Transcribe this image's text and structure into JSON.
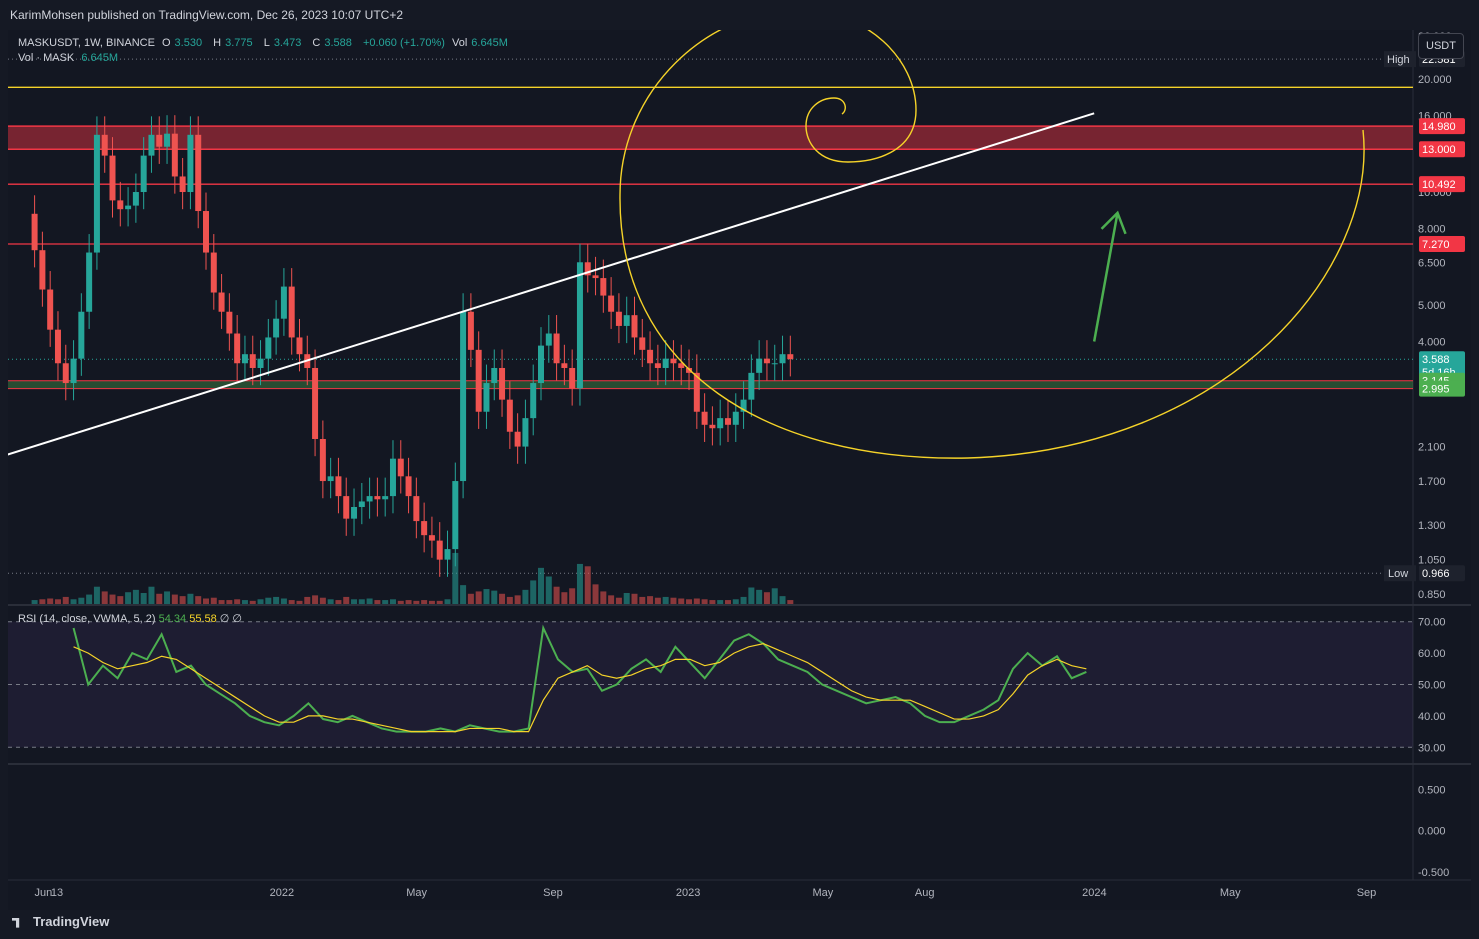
{
  "header": {
    "publisher": "KarimMohsen published on TradingView.com, Dec 26, 2023 10:07 UTC+2"
  },
  "legend": {
    "symbol": "MASKUSDT, 1W, BINANCE",
    "open_label": "O",
    "open": "3.530",
    "high_label": "H",
    "high": "3.775",
    "low_label": "L",
    "low": "3.473",
    "close_label": "C",
    "close": "3.588",
    "change": "+0.060 (+1.70%)",
    "vol_label": "Vol",
    "vol": "6.645M",
    "vol_series": "Vol · MASK",
    "vol_series_value": "6.645M"
  },
  "currency_button": "USDT",
  "rsi_legend": {
    "label": "RSI (14, close, VWMA, 5, 2)",
    "rsi": "54.34",
    "ma": "55.58",
    "extra": "∅ ∅"
  },
  "footer": {
    "brand": "TradingView"
  },
  "colors": {
    "bg": "#131722",
    "up": "#26a69a",
    "down": "#ef5350",
    "trend": "#ffffff",
    "spiral": "#f5d329",
    "zone_red": "#f23645",
    "zone_green": "#4caf50",
    "rsi": "#4caf50",
    "rsi_ma": "#f5d329",
    "arrow": "#4caf50"
  },
  "chart_data": [
    {
      "type": "candlestick",
      "title": "MASKUSDT, 1W, BINANCE",
      "y_scale": "log",
      "ylim": [
        0.8,
        27
      ],
      "y_ticks": [
        "26.000",
        "20.000",
        "16.000",
        "10.000",
        "8.000",
        "6.500",
        "5.000",
        "4.000",
        "2.100",
        "1.700",
        "1.300",
        "1.050",
        "0.850"
      ],
      "x_ticks": [
        "Jun",
        "13",
        "2022",
        "May",
        "Sep",
        "2023",
        "May",
        "Aug",
        "2024",
        "May",
        "Sep"
      ],
      "high_marker": {
        "label": "High",
        "value": "22.581"
      },
      "low_marker": {
        "label": "Low",
        "value": "0.966"
      },
      "price_labels": [
        {
          "value": "14.980",
          "kind": "zone"
        },
        {
          "value": "13.000",
          "kind": "zone"
        },
        {
          "value": "10.492",
          "kind": "level"
        },
        {
          "value": "7.270",
          "kind": "level"
        },
        {
          "value": "3.588",
          "kind": "last",
          "sub": "5d 16h"
        },
        {
          "value": "3.145",
          "kind": "support"
        },
        {
          "value": "2.995",
          "kind": "support"
        }
      ],
      "horizontal_levels": [
        19.0,
        10.492,
        7.27
      ],
      "resistance_zone": [
        13.0,
        14.98
      ],
      "support_zone": [
        2.995,
        3.145
      ],
      "trendline": [
        {
          "date": "2021-01-01",
          "price": 1.55
        },
        {
          "date": "2024-01-01",
          "price": 16.2
        }
      ],
      "forecast_arrow": [
        {
          "date": "2024-01-01",
          "price": 4.0
        },
        {
          "date": "2024-01-22",
          "price": 8.8
        }
      ],
      "closes": [
        7.0,
        5.5,
        4.3,
        3.5,
        3.1,
        3.6,
        4.8,
        6.9,
        14.2,
        12.5,
        9.5,
        9.0,
        9.2,
        10.0,
        12.5,
        14.2,
        13.2,
        14.3,
        11.0,
        10.0,
        14.2,
        8.9,
        6.9,
        5.4,
        4.8,
        4.2,
        3.5,
        3.7,
        3.4,
        3.6,
        4.1,
        4.6,
        5.6,
        4.1,
        3.7,
        3.4,
        2.2,
        1.7,
        1.75,
        1.55,
        1.35,
        1.45,
        1.5,
        1.55,
        1.52,
        1.55,
        1.95,
        1.75,
        1.55,
        1.33,
        1.22,
        1.18,
        1.05,
        1.12,
        1.7,
        4.8,
        3.8,
        2.6,
        3.1,
        3.4,
        2.8,
        2.3,
        2.1,
        2.5,
        3.1,
        3.9,
        4.2,
        3.5,
        3.4,
        3.0,
        6.5,
        6.0,
        5.9,
        5.3,
        4.8,
        4.4,
        4.7,
        4.1,
        3.8,
        3.5,
        3.4,
        3.6,
        3.5,
        3.4,
        3.3,
        2.6,
        2.4,
        2.35,
        2.5,
        2.4,
        2.6,
        2.8,
        3.3,
        3.6,
        3.5,
        3.5,
        3.7,
        3.588
      ],
      "volumes": [
        0.5,
        0.6,
        0.7,
        0.6,
        0.9,
        0.6,
        0.8,
        1.2,
        2.2,
        1.6,
        1.2,
        1.0,
        1.5,
        1.8,
        1.4,
        2.2,
        1.3,
        1.6,
        1.2,
        1.0,
        1.3,
        1.0,
        0.7,
        0.8,
        0.5,
        0.5,
        0.6,
        0.5,
        0.4,
        0.6,
        0.8,
        0.9,
        0.7,
        0.5,
        0.4,
        0.9,
        1.1,
        0.8,
        0.6,
        0.5,
        0.9,
        0.6,
        0.6,
        0.7,
        0.5,
        0.5,
        0.6,
        0.4,
        0.5,
        0.4,
        0.5,
        0.4,
        0.4,
        0.6,
        6.5,
        2.4,
        1.3,
        1.6,
        1.9,
        1.7,
        1.3,
        0.9,
        1.1,
        1.8,
        3.0,
        4.6,
        3.5,
        2.2,
        1.5,
        2.0,
        5.1,
        4.8,
        2.5,
        1.6,
        1.1,
        0.8,
        1.4,
        1.3,
        0.9,
        1.0,
        0.8,
        0.9,
        0.8,
        0.7,
        0.6,
        0.7,
        0.6,
        0.5,
        0.5,
        0.5,
        0.6,
        0.9,
        2.1,
        1.8,
        1.5,
        2.0,
        1.0,
        0.5
      ]
    },
    {
      "type": "line",
      "title": "RSI (14, close, VWMA, 5, 2)",
      "ylim": [
        25,
        75
      ],
      "y_ticks": [
        "70.00",
        "60.00",
        "50.00",
        "40.00",
        "30.00"
      ],
      "band": [
        30,
        70
      ],
      "series": [
        {
          "name": "RSI",
          "values": [
            68,
            50,
            56,
            52,
            60,
            58,
            66,
            54,
            56,
            50,
            47,
            44,
            40,
            38,
            37,
            40,
            44,
            39,
            38,
            40,
            38,
            36,
            35,
            35,
            35,
            36,
            35,
            37,
            36,
            35,
            35,
            36,
            68,
            58,
            54,
            55,
            48,
            50,
            55,
            58,
            54,
            62,
            57,
            52,
            58,
            64,
            66,
            63,
            58,
            56,
            54,
            50,
            48,
            46,
            44,
            45,
            46,
            44,
            40,
            38,
            38,
            40,
            42,
            45,
            55,
            60,
            56,
            59,
            52,
            54
          ]
        },
        {
          "name": "MA",
          "values": [
            62,
            60,
            57,
            55,
            56,
            57,
            59,
            58,
            55,
            52,
            49,
            46,
            43,
            40,
            38,
            38,
            40,
            40,
            39,
            39,
            38,
            37,
            36,
            35,
            35,
            35,
            35,
            36,
            36,
            36,
            35,
            35,
            45,
            52,
            54,
            56,
            53,
            52,
            53,
            55,
            56,
            58,
            58,
            56,
            57,
            60,
            62,
            63,
            61,
            59,
            57,
            54,
            51,
            48,
            46,
            45,
            45,
            45,
            43,
            41,
            39,
            39,
            40,
            42,
            47,
            53,
            56,
            58,
            56,
            55
          ]
        }
      ]
    },
    {
      "type": "line",
      "title": "",
      "ylim": [
        -0.6,
        0.8
      ],
      "y_ticks": [
        "0.500",
        "0.000",
        "-0.500"
      ]
    }
  ]
}
